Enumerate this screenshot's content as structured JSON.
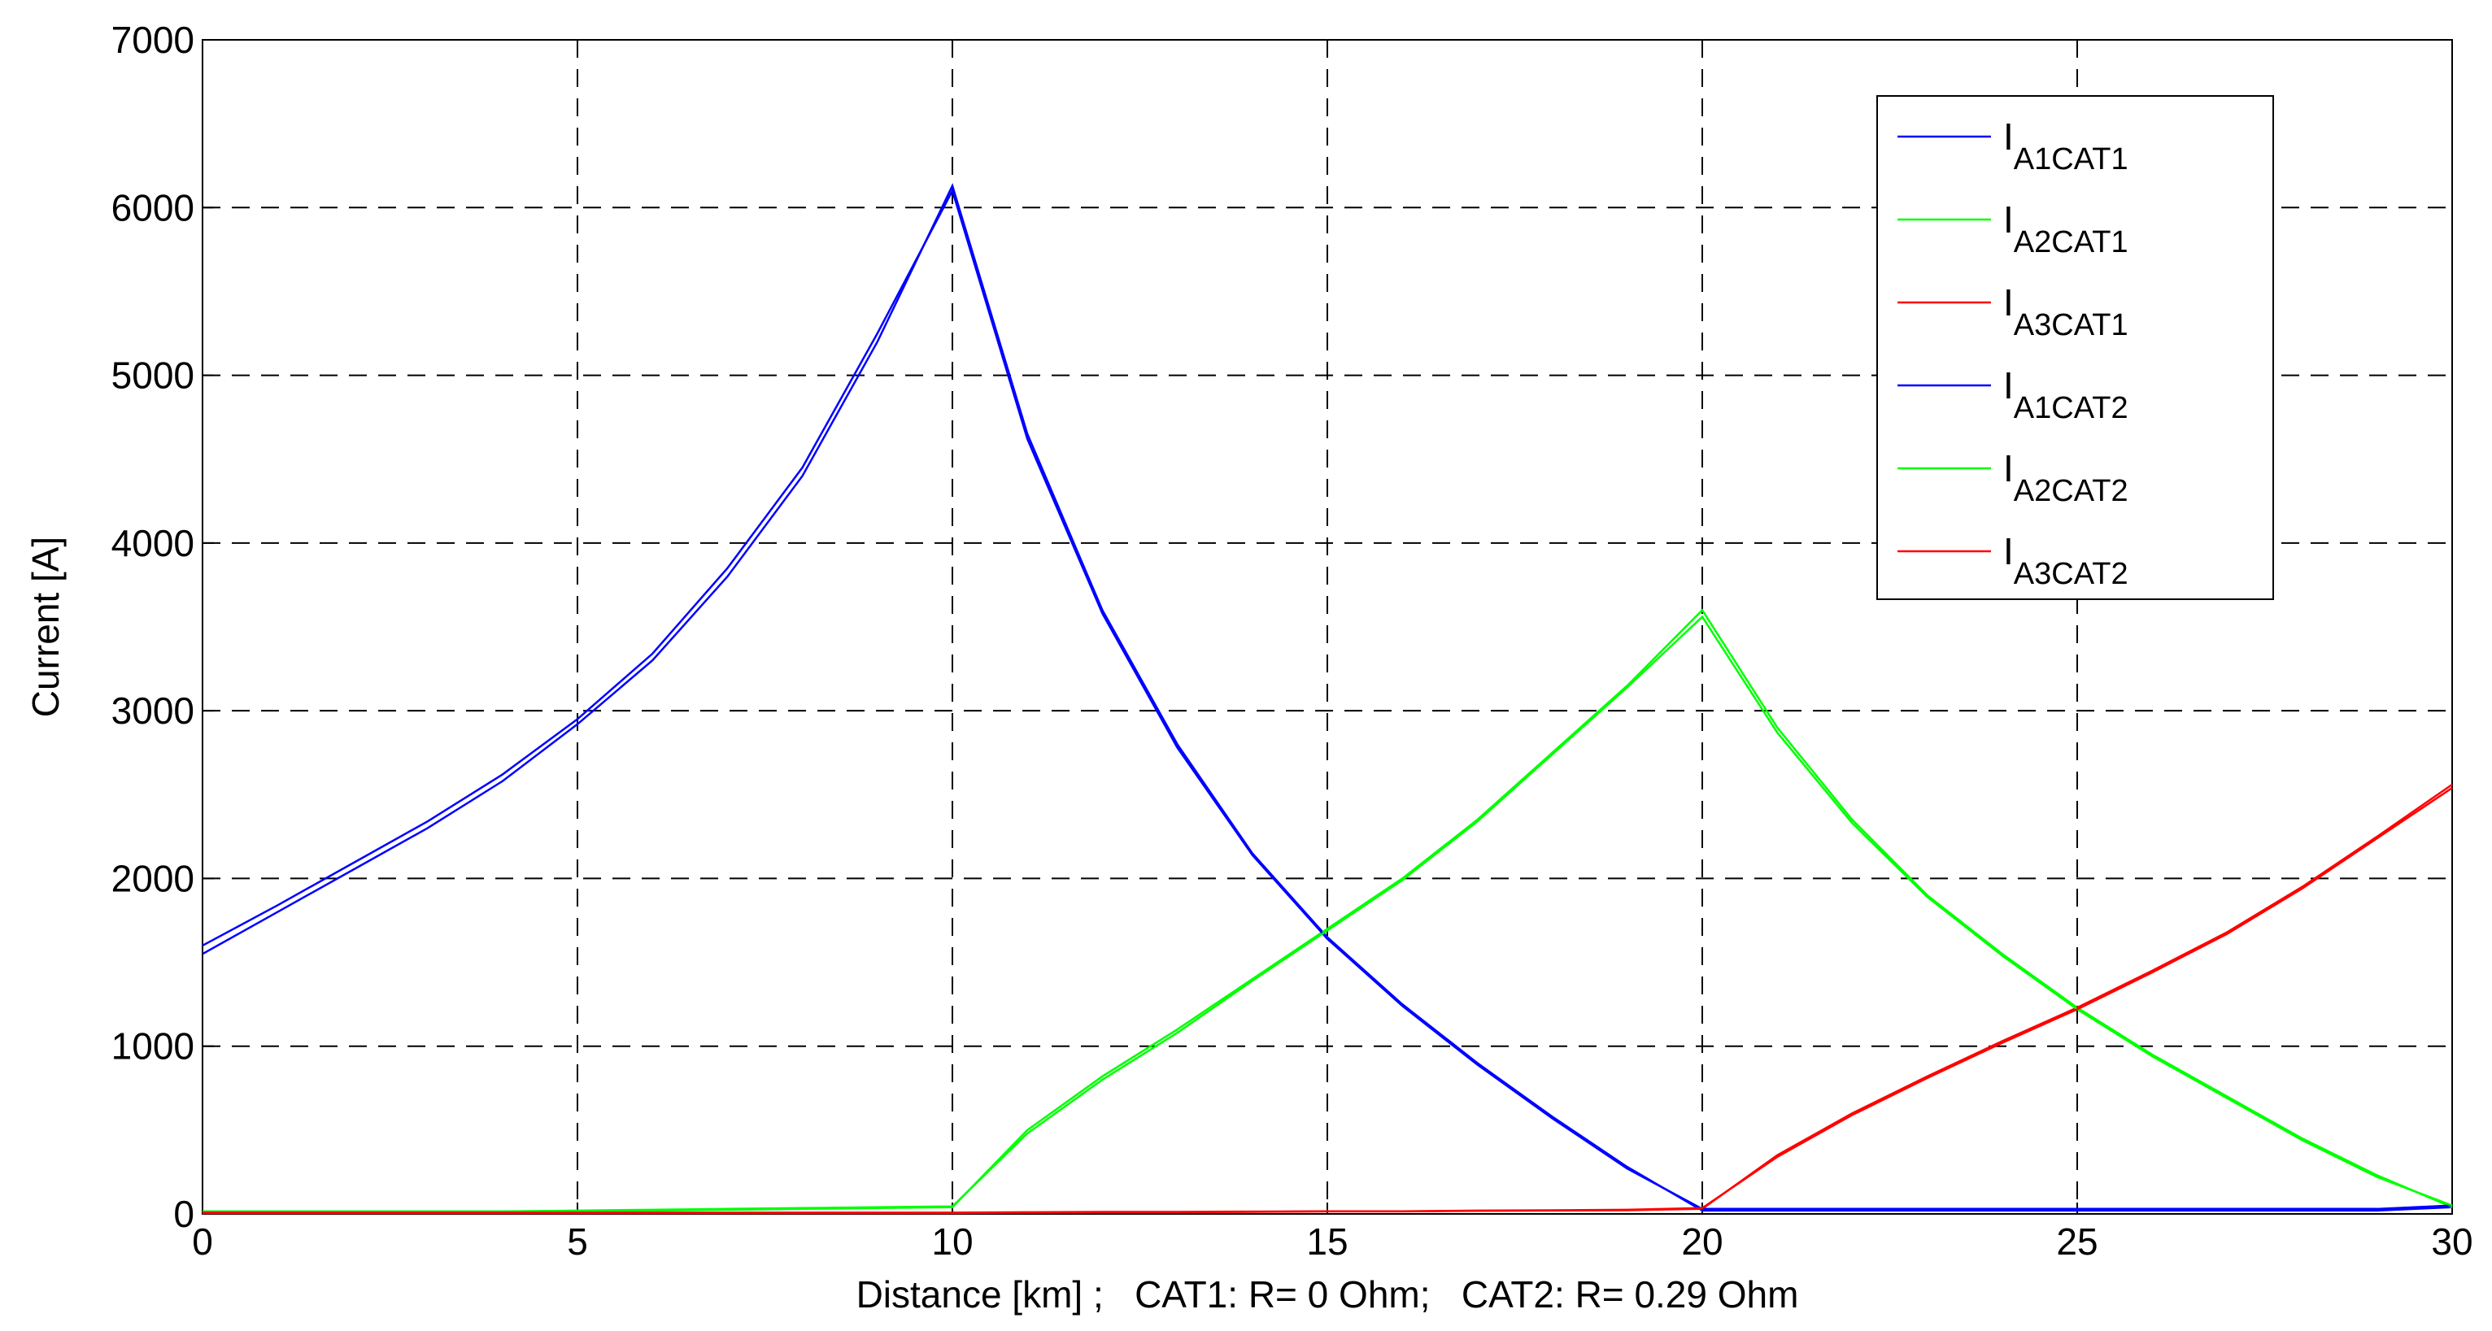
{
  "chart_data": {
    "type": "line",
    "xlabel": "Distance [km] ;   CAT1: R= 0 Ohm;   CAT2: R= 0.29 Ohm",
    "ylabel": "Current [A]",
    "x": [
      0,
      1,
      2,
      3,
      4,
      5,
      6,
      7,
      8,
      9,
      10,
      11,
      12,
      13,
      14,
      15,
      16,
      17,
      18,
      19,
      20,
      21,
      22,
      23,
      24,
      25,
      26,
      27,
      28,
      29,
      30
    ],
    "series": [
      {
        "name": "IA1CAT1",
        "color": "#0000ff",
        "values": [
          1550,
          1800,
          2050,
          2300,
          2580,
          2920,
          3300,
          3800,
          4400,
          5200,
          6130,
          4650,
          3600,
          2800,
          2150,
          1650,
          1250,
          900,
          580,
          280,
          20,
          20,
          20,
          20,
          20,
          20,
          20,
          20,
          20,
          20,
          40
        ]
      },
      {
        "name": "IA2CAT1",
        "color": "#00ff00",
        "values": [
          10,
          10,
          10,
          10,
          10,
          15,
          20,
          25,
          30,
          35,
          40,
          500,
          820,
          1100,
          1400,
          1700,
          2000,
          2350,
          2750,
          3150,
          3600,
          2900,
          2350,
          1900,
          1550,
          1230,
          950,
          700,
          450,
          230,
          40
        ]
      },
      {
        "name": "IA3CAT1",
        "color": "#ff0000",
        "values": [
          5,
          5,
          5,
          5,
          5,
          5,
          5,
          5,
          5,
          5,
          5,
          8,
          10,
          10,
          12,
          15,
          15,
          18,
          20,
          22,
          30,
          350,
          600,
          820,
          1030,
          1230,
          1450,
          1680,
          1950,
          2250,
          2560
        ]
      },
      {
        "name": "IA1CAT2",
        "color": "#0000ff",
        "values": [
          1600,
          1840,
          2090,
          2340,
          2620,
          2950,
          3340,
          3850,
          4450,
          5250,
          6100,
          4620,
          3580,
          2780,
          2140,
          1640,
          1240,
          890,
          570,
          270,
          30,
          30,
          30,
          30,
          30,
          30,
          30,
          30,
          30,
          30,
          50
        ]
      },
      {
        "name": "IA2CAT2",
        "color": "#00ff00",
        "values": [
          15,
          15,
          15,
          15,
          15,
          20,
          25,
          30,
          35,
          40,
          45,
          480,
          800,
          1080,
          1390,
          1690,
          1990,
          2340,
          2740,
          3140,
          3560,
          2870,
          2330,
          1890,
          1540,
          1220,
          940,
          690,
          440,
          220,
          50
        ]
      },
      {
        "name": "IA3CAT2",
        "color": "#ff0000",
        "values": [
          8,
          8,
          8,
          8,
          8,
          8,
          8,
          8,
          8,
          8,
          8,
          10,
          12,
          12,
          14,
          16,
          16,
          20,
          22,
          25,
          35,
          340,
          590,
          810,
          1020,
          1220,
          1440,
          1670,
          1940,
          2240,
          2540
        ]
      }
    ],
    "xlim": [
      0,
      30
    ],
    "xticks": [
      0,
      5,
      10,
      15,
      20,
      25,
      30
    ],
    "ylim": [
      0,
      7000
    ],
    "yticks": [
      0,
      1000,
      2000,
      3000,
      4000,
      5000,
      6000,
      7000
    ],
    "grid": true
  }
}
